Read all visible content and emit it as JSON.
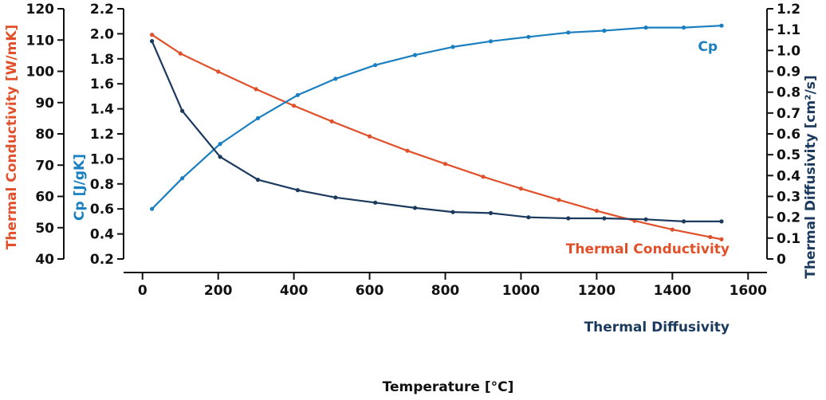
{
  "chart_data": {
    "type": "line",
    "xlabel": "Temperature [°C]",
    "xlim": [
      -50,
      1650
    ],
    "x_ticks": [
      "0",
      "200",
      "400",
      "600",
      "800",
      "1000",
      "1200",
      "1400",
      "1600"
    ],
    "axes": {
      "conductivity": {
        "label": "Thermal Conductivity [W/mK]",
        "ylim": [
          40,
          120
        ],
        "ticks": [
          "40",
          "50",
          "60",
          "70",
          "80",
          "90",
          "100",
          "110",
          "120"
        ],
        "color": "#e0502a"
      },
      "cp": {
        "label": "Cp [J/gK]",
        "ylim": [
          0.2,
          2.2
        ],
        "ticks": [
          "0.2",
          "0.4",
          "0.6",
          "0.8",
          "1.0",
          "1.2",
          "1.4",
          "1.6",
          "1.8",
          "2.0",
          "2.2"
        ],
        "color": "#1a7fc0"
      },
      "diffusivity": {
        "label": "Thermal Diffusivity [cm²/s]",
        "ylim": [
          0,
          1.2
        ],
        "ticks": [
          "0",
          "0.1",
          "0.2",
          "0.3",
          "0.4",
          "0.5",
          "0.6",
          "0.7",
          "0.8",
          "0.9",
          "1.0",
          "1.1",
          "1.2"
        ],
        "color": "#1c3a5e"
      }
    },
    "series": [
      {
        "name": "Thermal Conductivity",
        "axis": "conductivity",
        "color": "#e0502a",
        "x": [
          25,
          100,
          200,
          300,
          400,
          500,
          600,
          700,
          800,
          900,
          1000,
          1100,
          1200,
          1300,
          1400,
          1500,
          1530
        ],
        "y": [
          111.7,
          105.7,
          99.9,
          94.3,
          89.0,
          84.0,
          79.2,
          74.6,
          70.4,
          66.3,
          62.5,
          58.9,
          55.4,
          52.2,
          49.4,
          47.0,
          46.3
        ]
      },
      {
        "name": "Cp",
        "axis": "cp",
        "color": "#1a7fc0",
        "x": [
          25,
          105,
          205,
          305,
          410,
          510,
          615,
          720,
          820,
          920,
          1020,
          1125,
          1220,
          1330,
          1430,
          1530
        ],
        "y": [
          0.6,
          0.845,
          1.12,
          1.325,
          1.51,
          1.64,
          1.75,
          1.83,
          1.895,
          1.94,
          1.975,
          2.01,
          2.025,
          2.05,
          2.05,
          2.065
        ]
      },
      {
        "name": "Thermal Diffusivity",
        "axis": "diffusivity",
        "color": "#1c3a5e",
        "x": [
          25,
          105,
          205,
          305,
          410,
          510,
          615,
          720,
          820,
          920,
          1020,
          1125,
          1220,
          1330,
          1430,
          1530
        ],
        "y": [
          1.045,
          0.71,
          0.49,
          0.38,
          0.33,
          0.295,
          0.27,
          0.245,
          0.225,
          0.22,
          0.2,
          0.195,
          0.195,
          0.19,
          0.18,
          0.18
        ]
      }
    ],
    "series_labels": {
      "cp": "Cp",
      "conductivity": "Thermal Conductivity",
      "diffusivity": "Thermal Diffusivity"
    },
    "grid": false,
    "legend": "inline labels"
  }
}
